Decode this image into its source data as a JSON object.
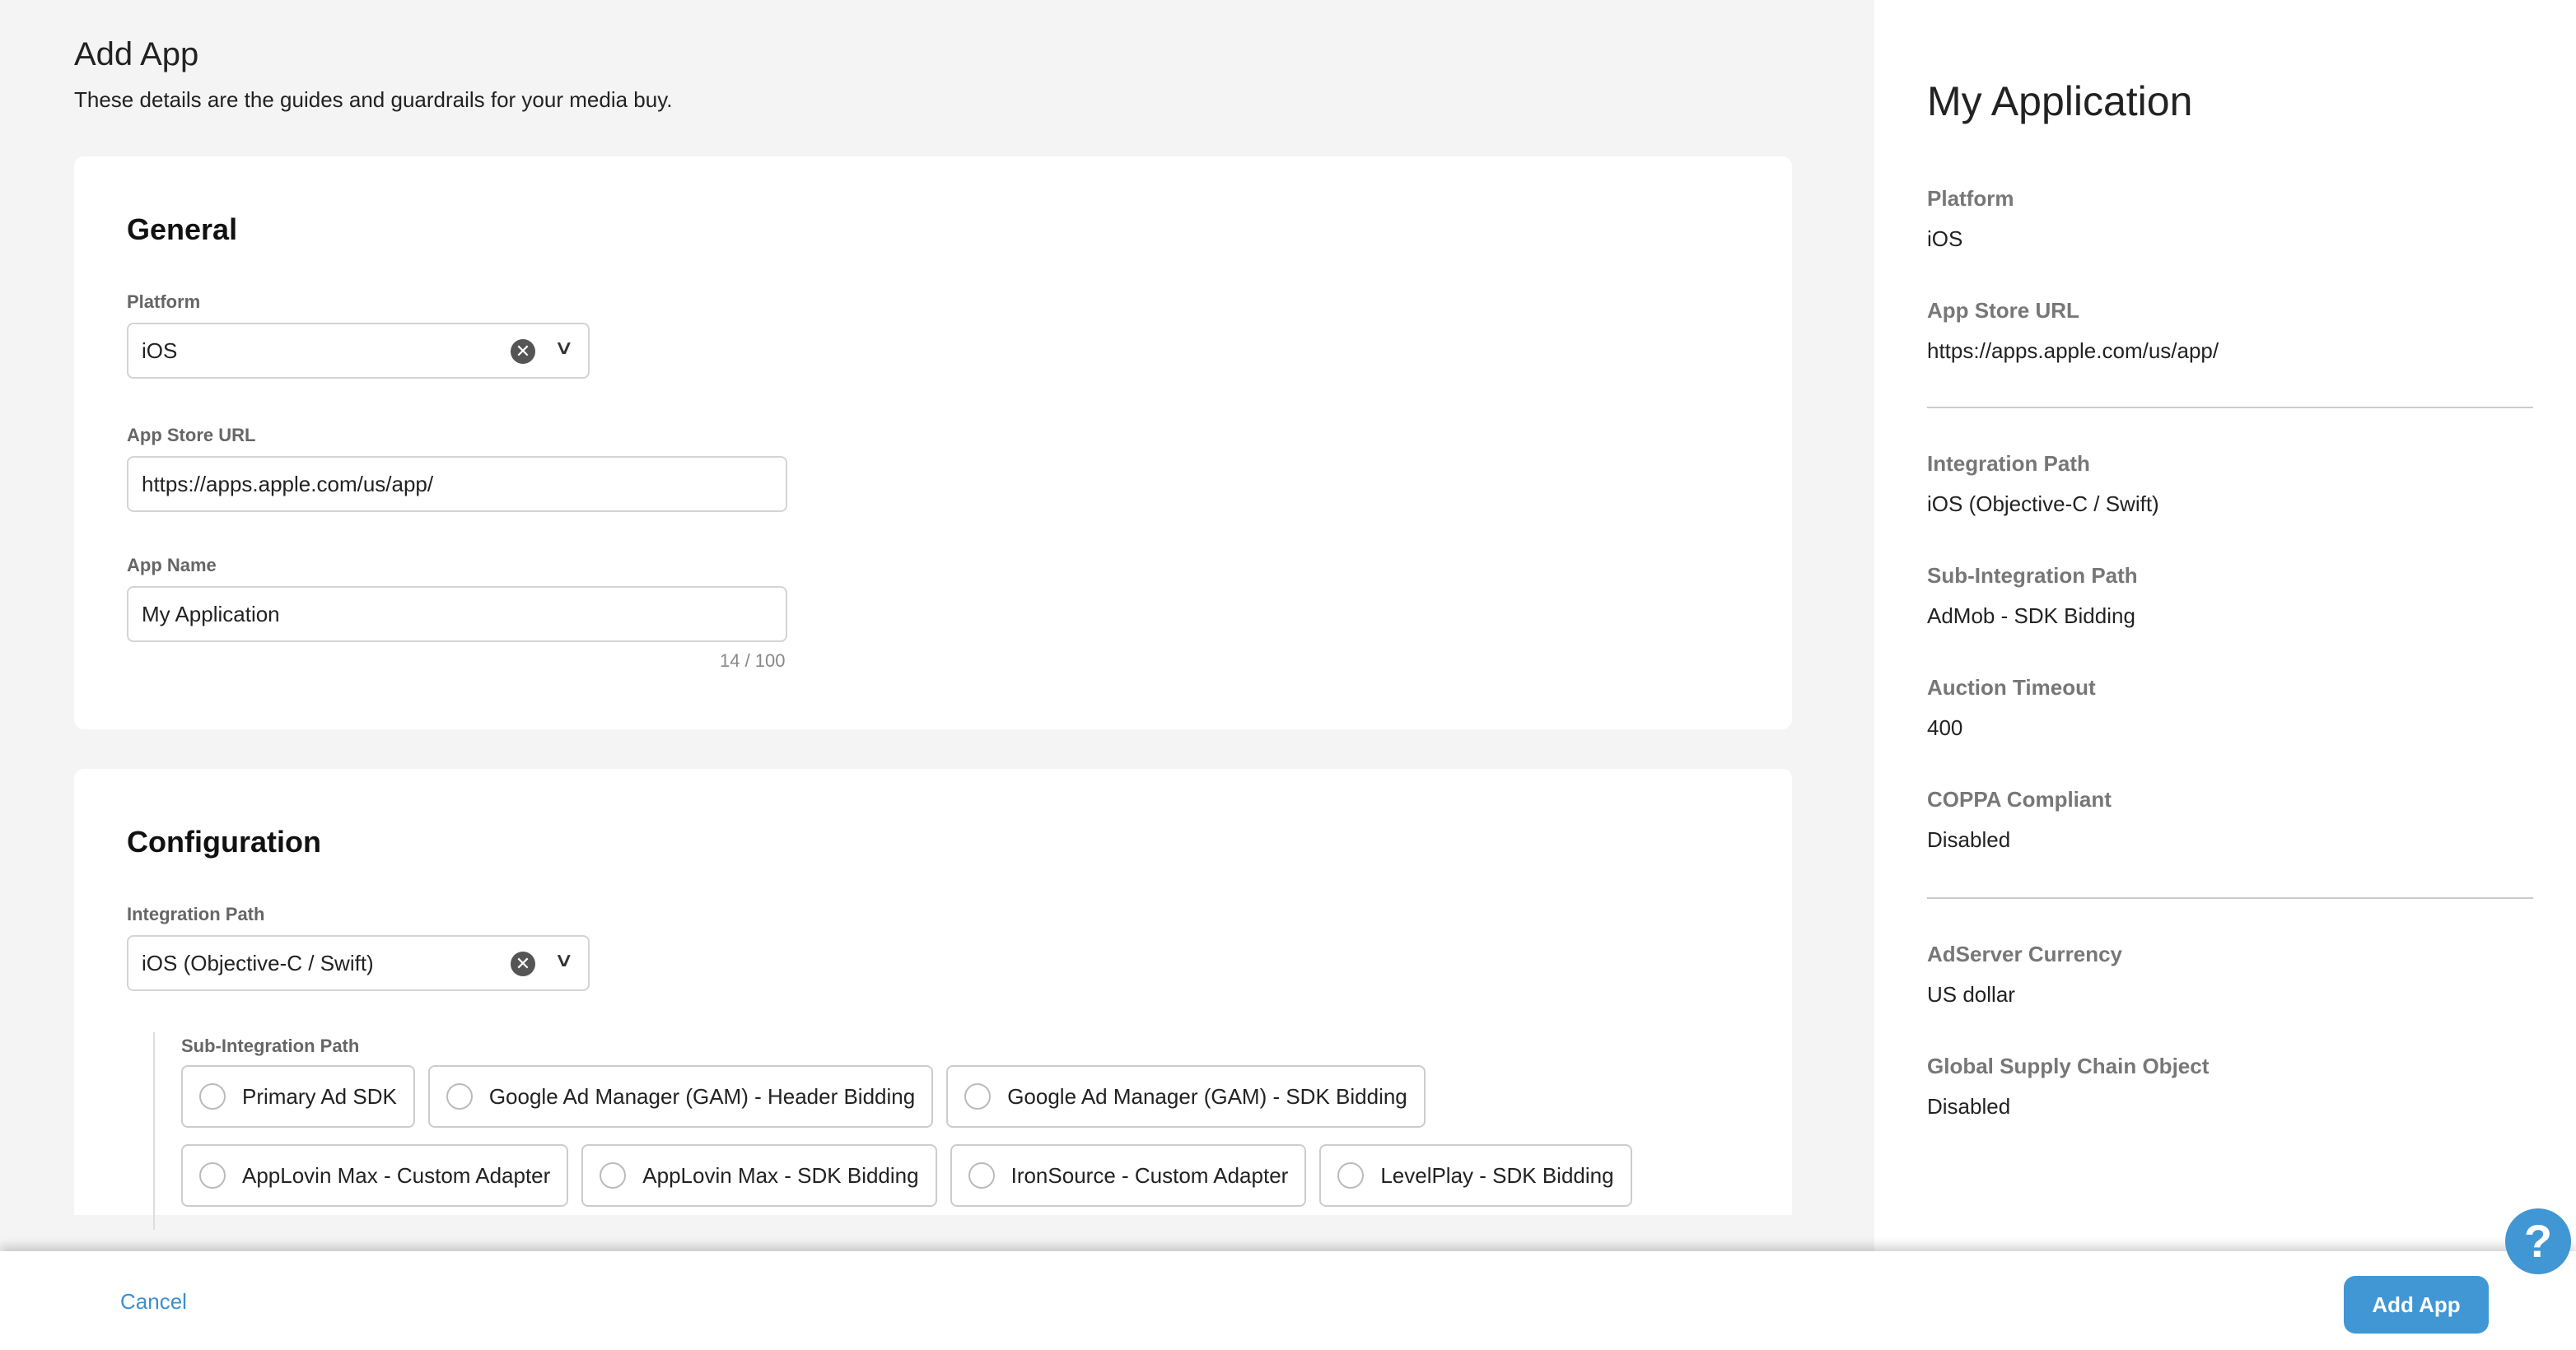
{
  "header": {
    "title": "Add App",
    "subtitle": "These details are the guides and guardrails for your media buy."
  },
  "general": {
    "title": "General",
    "platform": {
      "label": "Platform",
      "value": "iOS"
    },
    "app_store_url": {
      "label": "App Store URL",
      "value": "https://apps.apple.com/us/app/"
    },
    "app_name": {
      "label": "App Name",
      "value": "My Application",
      "counter": "14 / 100"
    }
  },
  "configuration": {
    "title": "Configuration",
    "integration_path": {
      "label": "Integration Path",
      "value": "iOS (Objective-C / Swift)"
    },
    "sub_integration": {
      "label": "Sub-Integration Path",
      "options": [
        "Primary Ad SDK",
        "Google Ad Manager (GAM) - Header Bidding",
        "Google Ad Manager (GAM) - SDK Bidding",
        "AppLovin Max - Custom Adapter",
        "AppLovin Max - SDK Bidding",
        "IronSource - Custom Adapter",
        "LevelPlay - SDK Bidding"
      ]
    }
  },
  "summary": {
    "title": "My Application",
    "items": [
      {
        "label": "Platform",
        "value": "iOS"
      },
      {
        "label": "App Store URL",
        "value": "https://apps.apple.com/us/app/"
      },
      {
        "label": "Integration Path",
        "value": "iOS (Objective-C / Swift)"
      },
      {
        "label": "Sub-Integration Path",
        "value": "AdMob - SDK Bidding"
      },
      {
        "label": "Auction Timeout",
        "value": "400"
      },
      {
        "label": "COPPA Compliant",
        "value": "Disabled"
      },
      {
        "label": "AdServer Currency",
        "value": "US dollar"
      },
      {
        "label": "Global Supply Chain Object",
        "value": "Disabled"
      }
    ]
  },
  "footer": {
    "cancel": "Cancel",
    "add": "Add App"
  },
  "help": {
    "icon": "help-icon",
    "glyph": "?"
  },
  "colors": {
    "accent": "#4196d4",
    "background": "#f4f4f4"
  }
}
